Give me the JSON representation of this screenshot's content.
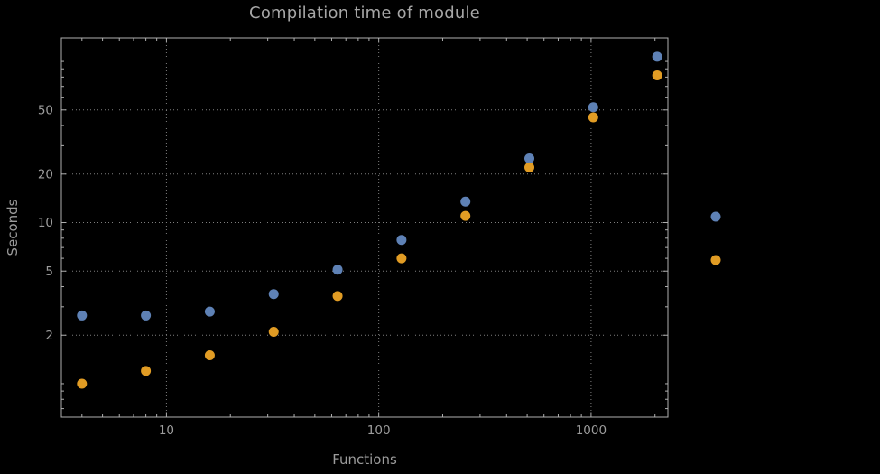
{
  "chart_data": {
    "type": "scatter",
    "title": "Compilation time of module",
    "xlabel": "Functions",
    "ylabel": "Seconds",
    "x_scale": "log",
    "y_scale": "log",
    "xlim": [
      3.2,
      2300
    ],
    "ylim": [
      0.62,
      140
    ],
    "x_ticks": [
      10,
      100,
      1000
    ],
    "y_ticks": [
      2,
      5,
      10,
      20,
      50
    ],
    "x_gridlines": [
      10,
      100,
      1000
    ],
    "y_gridlines": [
      2,
      5,
      10,
      20,
      50
    ],
    "grid_style": "dotted",
    "x": [
      4,
      8,
      16,
      32,
      64,
      128,
      256,
      512,
      1024,
      2048
    ],
    "series": [
      {
        "name": "blue",
        "color": "#5E81B5",
        "values": [
          2.65,
          2.65,
          2.8,
          3.6,
          5.1,
          7.8,
          13.5,
          25,
          52,
          107
        ]
      },
      {
        "name": "orange",
        "color": "#E19C24",
        "values": [
          1.0,
          1.2,
          1.5,
          2.1,
          3.5,
          6.0,
          11.0,
          22,
          45,
          82
        ]
      }
    ],
    "legend": {
      "position": "right-center",
      "markers_only": true,
      "labels_visible": false,
      "marker_order": [
        "blue",
        "orange"
      ]
    },
    "colors": {
      "background": "#000000",
      "grid": "#7f7f7f",
      "frame": "#b0b0b0",
      "text": "#9c9c9c"
    }
  }
}
